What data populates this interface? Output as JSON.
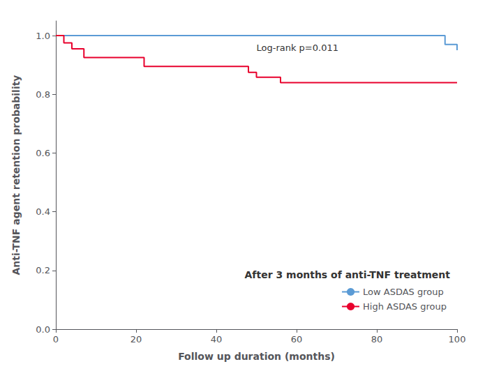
{
  "chart_data": {
    "type": "line",
    "xlabel": "Follow up duration (months)",
    "ylabel": "Anti-TNF agent retention probability",
    "xlim": [
      0,
      100
    ],
    "ylim": [
      0.0,
      1.05
    ],
    "xticks": [
      0,
      20,
      40,
      60,
      80,
      100
    ],
    "yticks": [
      {
        "value": 0.0,
        "label": "0.0"
      },
      {
        "value": 0.2,
        "label": "0.2"
      },
      {
        "value": 0.4,
        "label": "0.4"
      },
      {
        "value": 0.6,
        "label": "0.6"
      },
      {
        "value": 0.8,
        "label": "0.8"
      },
      {
        "value": 1.0,
        "label": "1.0"
      }
    ],
    "annotations": [
      {
        "text": "Log-rank p=0.011",
        "x": 50,
        "y": 0.975
      }
    ],
    "legend_title": "After 3 months of anti-TNF treatment",
    "legend": "lower right",
    "grid": false,
    "line_style": "steps-post",
    "series": [
      {
        "name": "Low ASDAS group",
        "color": "#5b9bd5",
        "x": [
          0,
          5,
          93,
          97,
          100
        ],
        "values": [
          1.0,
          1.0,
          1.0,
          0.97,
          0.95
        ]
      },
      {
        "name": "High ASDAS group",
        "color": "#e8002d",
        "x": [
          0,
          2,
          4,
          7,
          22,
          48,
          50,
          56,
          100
        ],
        "values": [
          1.0,
          0.975,
          0.955,
          0.925,
          0.895,
          0.875,
          0.858,
          0.84,
          0.84
        ]
      }
    ]
  }
}
